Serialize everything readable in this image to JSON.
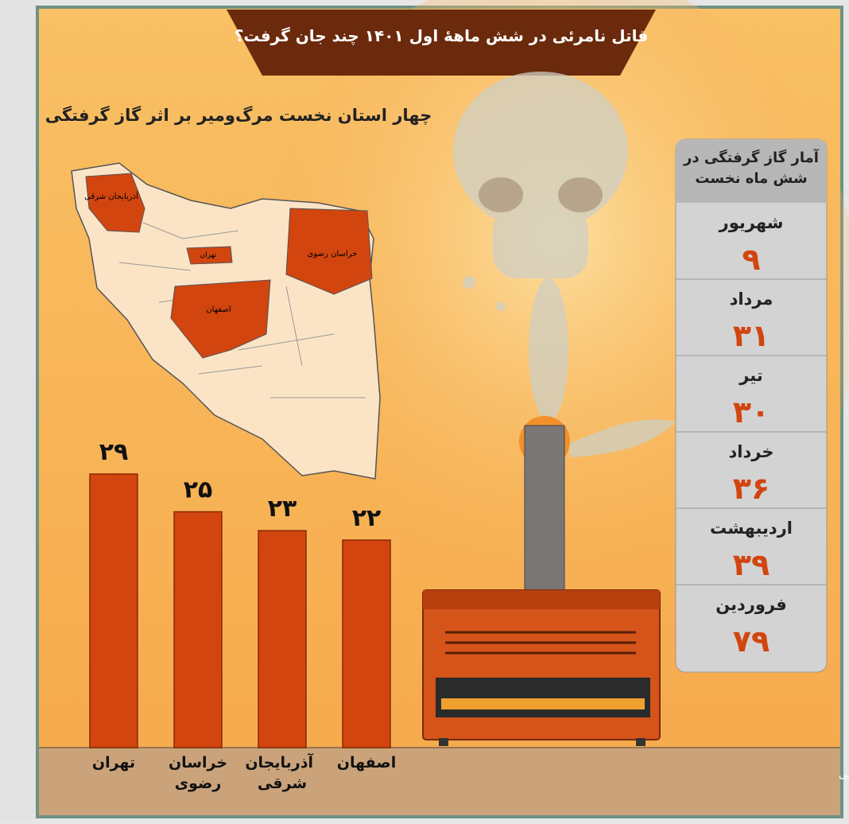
{
  "chart_data": {
    "type": "bar",
    "title": "قاتل نامرئی در شش ماههٔ اول ۱۴۰۱ چند جان گرفت؟",
    "subtitle": "چهار استان نخست مرگ‌ومیر بر اثر گاز گرفتگی",
    "categories": [
      "تهران",
      "خراسان رضوی",
      "آذربایجان شرقی",
      "اصفهان"
    ],
    "values": [
      29,
      25,
      23,
      22
    ],
    "value_labels": [
      "۲۹",
      "۲۵",
      "۲۳",
      "۲۲"
    ],
    "color": "#d2450f",
    "map_labels": [
      "آذربایجان شرقی",
      "تهران",
      "خراسان رضوی",
      "اصفهان"
    ],
    "source": "منبع داده‌ها: سازمان پزشکی قانونی"
  },
  "panel": {
    "title": "آمار گاز گرفتگی در شش ماه نخست",
    "rows": [
      {
        "month": "شهریور",
        "deaths": "۹"
      },
      {
        "month": "مرداد",
        "deaths": "۳۱"
      },
      {
        "month": "تیر",
        "deaths": "۳۰"
      },
      {
        "month": "خرداد",
        "deaths": "۳۶"
      },
      {
        "month": "اردیبهشت",
        "deaths": "۳۹"
      },
      {
        "month": "فروردین",
        "deaths": "۷۹"
      }
    ]
  }
}
